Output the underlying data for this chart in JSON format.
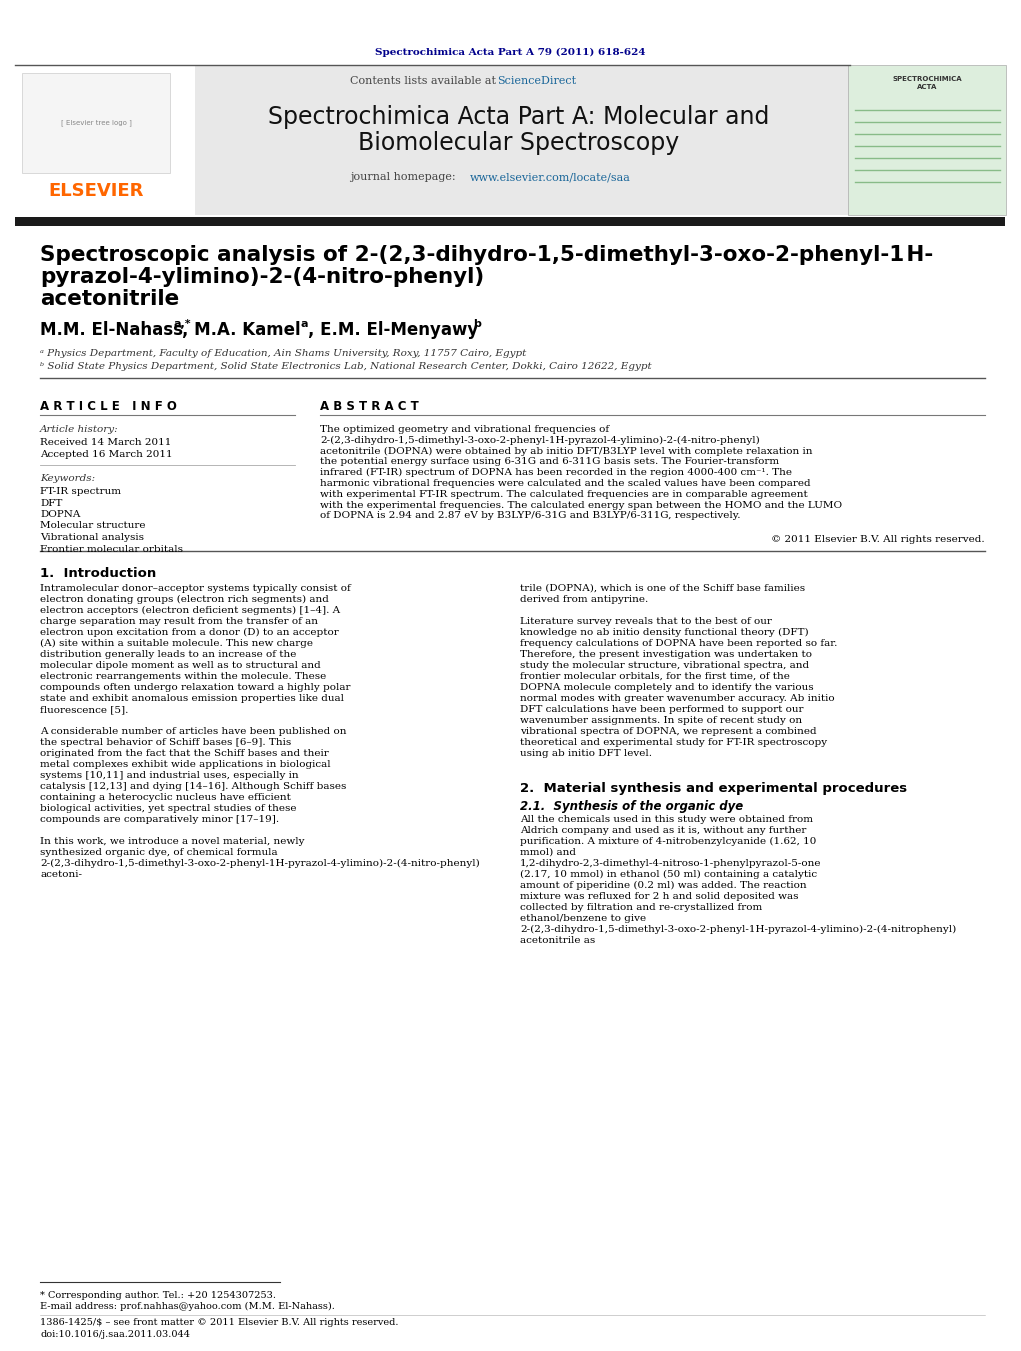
{
  "page_bg": "#ffffff",
  "top_journal_ref": "Spectrochimica Acta Part A 79 (2011) 618-624",
  "top_journal_ref_color": "#00008B",
  "header_bg": "#e8e8e8",
  "header_title_line1": "Spectrochimica Acta Part A: Molecular and",
  "header_title_line2": "Biomolecular Spectroscopy",
  "header_subtitle_link": "www.elsevier.com/locate/saa",
  "contents_text": "Contents lists available at ",
  "sciencedirect_text": "ScienceDirect",
  "sciencedirect_color": "#1a6699",
  "dark_bar_color": "#1a1a1a",
  "affil_a": "ᵃ Physics Department, Faculty of Education, Ain Shams University, Roxy, 11757 Cairo, Egypt",
  "affil_b": "ᵇ Solid State Physics Department, Solid State Electronics Lab, National Research Center, Dokki, Cairo 12622, Egypt",
  "article_info_title": "A R T I C L E   I N F O",
  "abstract_title": "A B S T R A C T",
  "article_history_label": "Article history:",
  "received": "Received 14 March 2011",
  "accepted": "Accepted 16 March 2011",
  "keywords_label": "Keywords:",
  "keywords": [
    "FT-IR spectrum",
    "DFT",
    "DOPNA",
    "Molecular structure",
    "Vibrational analysis",
    "Frontier molecular orbitals"
  ],
  "abstract_text": "The optimized geometry and vibrational frequencies of 2-(2,3-dihydro-1,5-dimethyl-3-oxo-2-phenyl-1H-pyrazol-4-ylimino)-2-(4-nitro-phenyl) acetonitrile (DOPNA) were obtained by ab initio DFT/B3LYP level with complete relaxation in the potential energy surface using 6-31G and 6-311G basis sets. The Fourier-transform infrared (FT-IR) spectrum of DOPNA has been recorded in the region 4000-400 cm⁻¹. The harmonic vibrational frequencies were calculated and the scaled values have been compared with experimental FT-IR spectrum. The calculated frequencies are in comparable agreement with the experimental frequencies. The calculated energy span between the HOMO and the LUMO of DOPNA is 2.94 and 2.87 eV by B3LYP/6-31G and B3LYP/6-311G, respectively.",
  "copyright": "© 2011 Elsevier B.V. All rights reserved.",
  "intro_heading": "1.  Introduction",
  "intro_col1": "Intramolecular donor–acceptor systems typically consist of electron donating groups (electron rich segments) and electron acceptors (electron deficient segments) [1–4]. A charge separation may result from the transfer of an electron upon excitation from a donor (D) to an acceptor (A) site within a suitable molecule. This new charge distribution generally leads to an increase of the molecular dipole moment as well as to structural and electronic rearrangements within the molecule. These compounds often undergo relaxation toward a highly polar state and exhibit anomalous emission properties like dual fluorescence [5].\n\nA considerable number of articles have been published on the spectral behavior of Schiff bases [6–9]. This originated from the fact that the Schiff bases and their metal complexes exhibit wide applications in biological systems [10,11] and industrial uses, especially in catalysis [12,13] and dying [14–16]. Although Schiff bases containing a heterocyclic nucleus have efficient biological activities, yet spectral studies of these compounds are comparatively minor [17–19].\n\nIn this work, we introduce a novel material, newly synthesized organic dye, of chemical formula 2-(2,3-dihydro-1,5-dimethyl-3-oxo-2-phenyl-1H-pyrazol-4-ylimino)-2-(4-nitro-phenyl) acetoni-",
  "intro_col2": "trile (DOPNA), which is one of the Schiff base families derived from antipyrine.\n\nLiterature survey reveals that to the best of our knowledge no ab initio density functional theory (DFT) frequency calculations of DOPNA have been reported so far. Therefore, the present investigation was undertaken to study the molecular structure, vibrational spectra, and frontier molecular orbitals, for the first time, of the DOPNA molecule completely and to identify the various normal modes with greater wavenumber accuracy. Ab initio DFT calculations have been performed to support our wavenumber assignments. In spite of recent study on vibrational spectra of DOPNA, we represent a combined theoretical and experimental study for FT-IR spectroscopy using ab initio DFT level.",
  "section2_heading": "2.  Material synthesis and experimental procedures",
  "section21_heading": "2.1.  Synthesis of the organic dye",
  "section21_text": "All the chemicals used in this study were obtained from Aldrich company and used as it is, without any further purification. A mixture of 4-nitrobenzylcyanide (1.62, 10 mmol) and 1,2-dihydro-2,3-dimethyl-4-nitroso-1-phenylpyrazol-5-one (2.17, 10 mmol) in ethanol (50 ml) containing a catalytic amount of piperidine (0.2 ml) was added. The reaction mixture was refluxed for 2 h and solid deposited was collected by filtration and re-crystallized from ethanol/benzene to give 2-(2,3-dihydro-1,5-dimethyl-3-oxo-2-phenyl-1H-pyrazol-4-ylimino)-2-(4-nitrophenyl) acetonitrile as",
  "footnote_star": "* Corresponding author. Tel.: +20 1254307253.",
  "footnote_email": "E-mail address: prof.nahhas@yahoo.com (M.M. El-Nahass).",
  "footer_issn": "1386-1425/$ – see front matter © 2011 Elsevier B.V. All rights reserved.",
  "footer_doi": "doi:10.1016/j.saa.2011.03.044"
}
